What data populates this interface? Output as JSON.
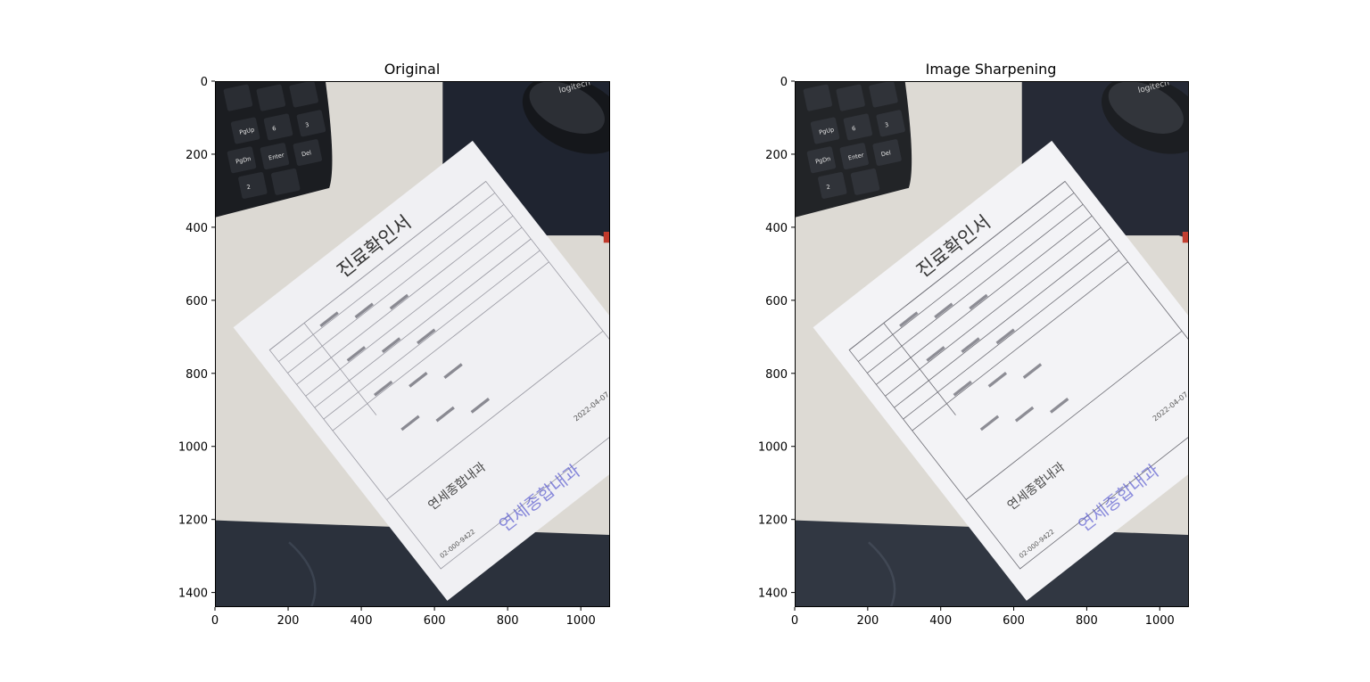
{
  "figure": {
    "panels": [
      {
        "title": "Original",
        "kind": "original",
        "x_ticks": [
          "0",
          "200",
          "400",
          "600",
          "800",
          "1000"
        ],
        "y_ticks": [
          "0",
          "200",
          "400",
          "600",
          "800",
          "1000",
          "1200",
          "1400"
        ]
      },
      {
        "title": "Image Sharpening",
        "kind": "sharpened",
        "x_ticks": [
          "0",
          "200",
          "400",
          "600",
          "800",
          "1000"
        ],
        "y_ticks": [
          "0",
          "200",
          "400",
          "600",
          "800",
          "1000",
          "1200",
          "1400"
        ]
      }
    ],
    "image_extent": {
      "width": 1080,
      "height": 1440
    },
    "document_text": {
      "title": "진료확인서",
      "hospital": "연세종합내과",
      "stamp_text": "연세종합내과",
      "keyboard_keys": [
        "PgUp",
        "6",
        "3",
        "PgDn",
        "Enter",
        "Del",
        "2"
      ],
      "mouse_brand": "logitech",
      "date": "2022-04-07",
      "phone": "02-000-9422"
    }
  },
  "colors": {
    "desk": "#dcd9d3",
    "paper": "#f0f0f3",
    "paper_sharp": "#f3f3f6",
    "mat": "#1f2430",
    "keyboard": "#1b1d21",
    "jeans": "#2b313c",
    "stamp_blue": "#5a5bd0",
    "stamp_red": "#d9534f"
  }
}
